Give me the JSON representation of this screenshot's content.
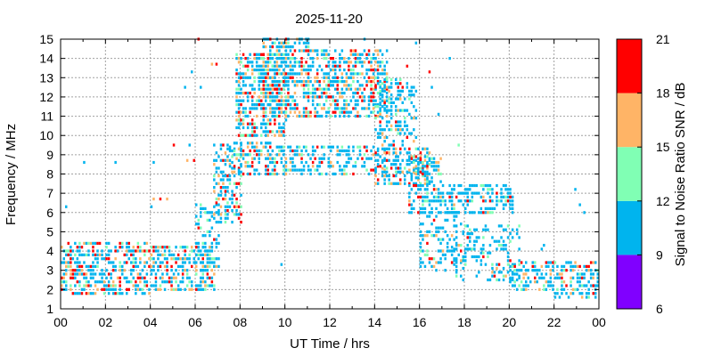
{
  "chart_data": {
    "type": "heatmap",
    "title": "2025-11-20",
    "xlabel": "UT Time / hrs",
    "ylabel": "Frequency / MHz",
    "xlim": [
      0,
      24
    ],
    "ylim": [
      1,
      15
    ],
    "x_ticks": [
      "00",
      "02",
      "04",
      "06",
      "08",
      "10",
      "12",
      "14",
      "16",
      "18",
      "20",
      "22",
      "00"
    ],
    "y_ticks": [
      "1",
      "2",
      "3",
      "4",
      "5",
      "6",
      "7",
      "8",
      "9",
      "10",
      "11",
      "12",
      "13",
      "14",
      "15"
    ],
    "grid": true,
    "colorbar": {
      "label": "Signal to Noise Ratio SNR / dB",
      "ticks": [
        "6",
        "9",
        "12",
        "15",
        "18",
        "21"
      ],
      "bands": [
        {
          "from": 6,
          "to": 9,
          "color": "#8000ff"
        },
        {
          "from": 9,
          "to": 12,
          "color": "#00b4ee"
        },
        {
          "from": 12,
          "to": 15,
          "color": "#80ffb4"
        },
        {
          "from": 15,
          "to": 18,
          "color": "#ffb466"
        },
        {
          "from": 18,
          "to": 21,
          "color": "#ff0000"
        }
      ]
    },
    "regions": [
      {
        "t": [
          0.0,
          2.0
        ],
        "f": [
          1.8,
          4.5
        ],
        "density": 0.55,
        "snr": [
          9,
          20
        ],
        "hot": 0.35
      },
      {
        "t": [
          2.0,
          4.0
        ],
        "f": [
          1.8,
          4.6
        ],
        "density": 0.55,
        "snr": [
          9,
          20
        ],
        "hot": 0.35
      },
      {
        "t": [
          4.0,
          6.8
        ],
        "f": [
          2.0,
          4.4
        ],
        "density": 0.55,
        "snr": [
          9,
          20
        ],
        "hot": 0.3
      },
      {
        "t": [
          6.0,
          7.0
        ],
        "f": [
          3.0,
          6.5
        ],
        "density": 0.35,
        "snr": [
          9,
          14
        ],
        "hot": 0.1
      },
      {
        "t": [
          6.8,
          8.0
        ],
        "f": [
          5.5,
          9.5
        ],
        "density": 0.45,
        "snr": [
          9,
          20
        ],
        "hot": 0.25
      },
      {
        "t": [
          7.5,
          10.0
        ],
        "f": [
          8.0,
          9.6
        ],
        "density": 0.45,
        "snr": [
          9,
          20
        ],
        "hot": 0.25
      },
      {
        "t": [
          7.8,
          10.0
        ],
        "f": [
          10.0,
          14.2
        ],
        "density": 0.55,
        "snr": [
          9,
          20
        ],
        "hot": 0.3
      },
      {
        "t": [
          9.0,
          11.0
        ],
        "f": [
          11.0,
          15.0
        ],
        "density": 0.55,
        "snr": [
          9,
          20
        ],
        "hot": 0.3
      },
      {
        "t": [
          10.0,
          14.5
        ],
        "f": [
          8.0,
          9.4
        ],
        "density": 0.4,
        "snr": [
          9,
          17
        ],
        "hot": 0.2
      },
      {
        "t": [
          11.0,
          14.5
        ],
        "f": [
          11.0,
          14.5
        ],
        "density": 0.55,
        "snr": [
          9,
          20
        ],
        "hot": 0.3
      },
      {
        "t": [
          14.0,
          15.8
        ],
        "f": [
          9.5,
          13.0
        ],
        "density": 0.4,
        "snr": [
          9,
          18
        ],
        "hot": 0.25
      },
      {
        "t": [
          14.0,
          16.5
        ],
        "f": [
          7.5,
          9.3
        ],
        "density": 0.5,
        "snr": [
          9,
          20
        ],
        "hot": 0.3
      },
      {
        "t": [
          15.5,
          17.0
        ],
        "f": [
          6.0,
          8.8
        ],
        "density": 0.5,
        "snr": [
          9,
          18
        ],
        "hot": 0.2
      },
      {
        "t": [
          16.0,
          18.0
        ],
        "f": [
          3.0,
          6.2
        ],
        "density": 0.3,
        "snr": [
          9,
          16
        ],
        "hot": 0.15
      },
      {
        "t": [
          17.0,
          20.2
        ],
        "f": [
          6.0,
          7.5
        ],
        "density": 0.45,
        "snr": [
          9,
          15
        ],
        "hot": 0.1
      },
      {
        "t": [
          17.5,
          20.5
        ],
        "f": [
          2.5,
          5.5
        ],
        "density": 0.3,
        "snr": [
          9,
          14
        ],
        "hot": 0.05
      },
      {
        "t": [
          20.0,
          22.0
        ],
        "f": [
          2.0,
          3.5
        ],
        "density": 0.45,
        "snr": [
          9,
          16
        ],
        "hot": 0.15
      },
      {
        "t": [
          22.0,
          24.0
        ],
        "f": [
          1.6,
          3.6
        ],
        "density": 0.5,
        "snr": [
          9,
          20
        ],
        "hot": 0.25
      }
    ],
    "sparse_points": [
      {
        "t": 0.2,
        "f": 6.3,
        "snr": 10
      },
      {
        "t": 1.0,
        "f": 8.6,
        "snr": 10
      },
      {
        "t": 2.4,
        "f": 8.6,
        "snr": 10
      },
      {
        "t": 4.1,
        "f": 8.6,
        "snr": 10
      },
      {
        "t": 4.1,
        "f": 6.7,
        "snr": 16
      },
      {
        "t": 4.4,
        "f": 6.7,
        "snr": 19
      },
      {
        "t": 4.7,
        "f": 6.7,
        "snr": 16
      },
      {
        "t": 4.0,
        "f": 6.3,
        "snr": 10
      },
      {
        "t": 5.0,
        "f": 9.5,
        "snr": 19
      },
      {
        "t": 5.7,
        "f": 9.5,
        "snr": 10
      },
      {
        "t": 5.6,
        "f": 8.7,
        "snr": 16
      },
      {
        "t": 5.9,
        "f": 8.7,
        "snr": 19
      },
      {
        "t": 6.1,
        "f": 15.0,
        "snr": 20
      },
      {
        "t": 5.8,
        "f": 13.3,
        "snr": 10
      },
      {
        "t": 5.5,
        "f": 12.5,
        "snr": 10
      },
      {
        "t": 6.2,
        "f": 12.5,
        "snr": 10
      },
      {
        "t": 6.9,
        "f": 13.7,
        "snr": 19
      },
      {
        "t": 6.7,
        "f": 13.7,
        "snr": 16
      },
      {
        "t": 9.8,
        "f": 3.3,
        "snr": 10
      },
      {
        "t": 17.7,
        "f": 9.5,
        "snr": 13
      },
      {
        "t": 17.3,
        "f": 14.0,
        "snr": 10
      },
      {
        "t": 16.5,
        "f": 12.5,
        "snr": 10
      },
      {
        "t": 16.8,
        "f": 11.1,
        "snr": 10
      },
      {
        "t": 20.0,
        "f": 6.8,
        "snr": 19
      },
      {
        "t": 21.5,
        "f": 4.3,
        "snr": 10
      },
      {
        "t": 21.4,
        "f": 4.1,
        "snr": 10
      },
      {
        "t": 23.1,
        "f": 6.4,
        "snr": 10
      },
      {
        "t": 23.3,
        "f": 6.0,
        "snr": 10
      },
      {
        "t": 22.9,
        "f": 7.2,
        "snr": 10
      },
      {
        "t": 13.5,
        "f": 15.0,
        "snr": 10
      },
      {
        "t": 15.8,
        "f": 14.8,
        "snr": 10
      },
      {
        "t": 16.4,
        "f": 13.3,
        "snr": 19
      },
      {
        "t": 15.4,
        "f": 13.6,
        "snr": 19
      }
    ],
    "noise_seed": 20251120
  }
}
